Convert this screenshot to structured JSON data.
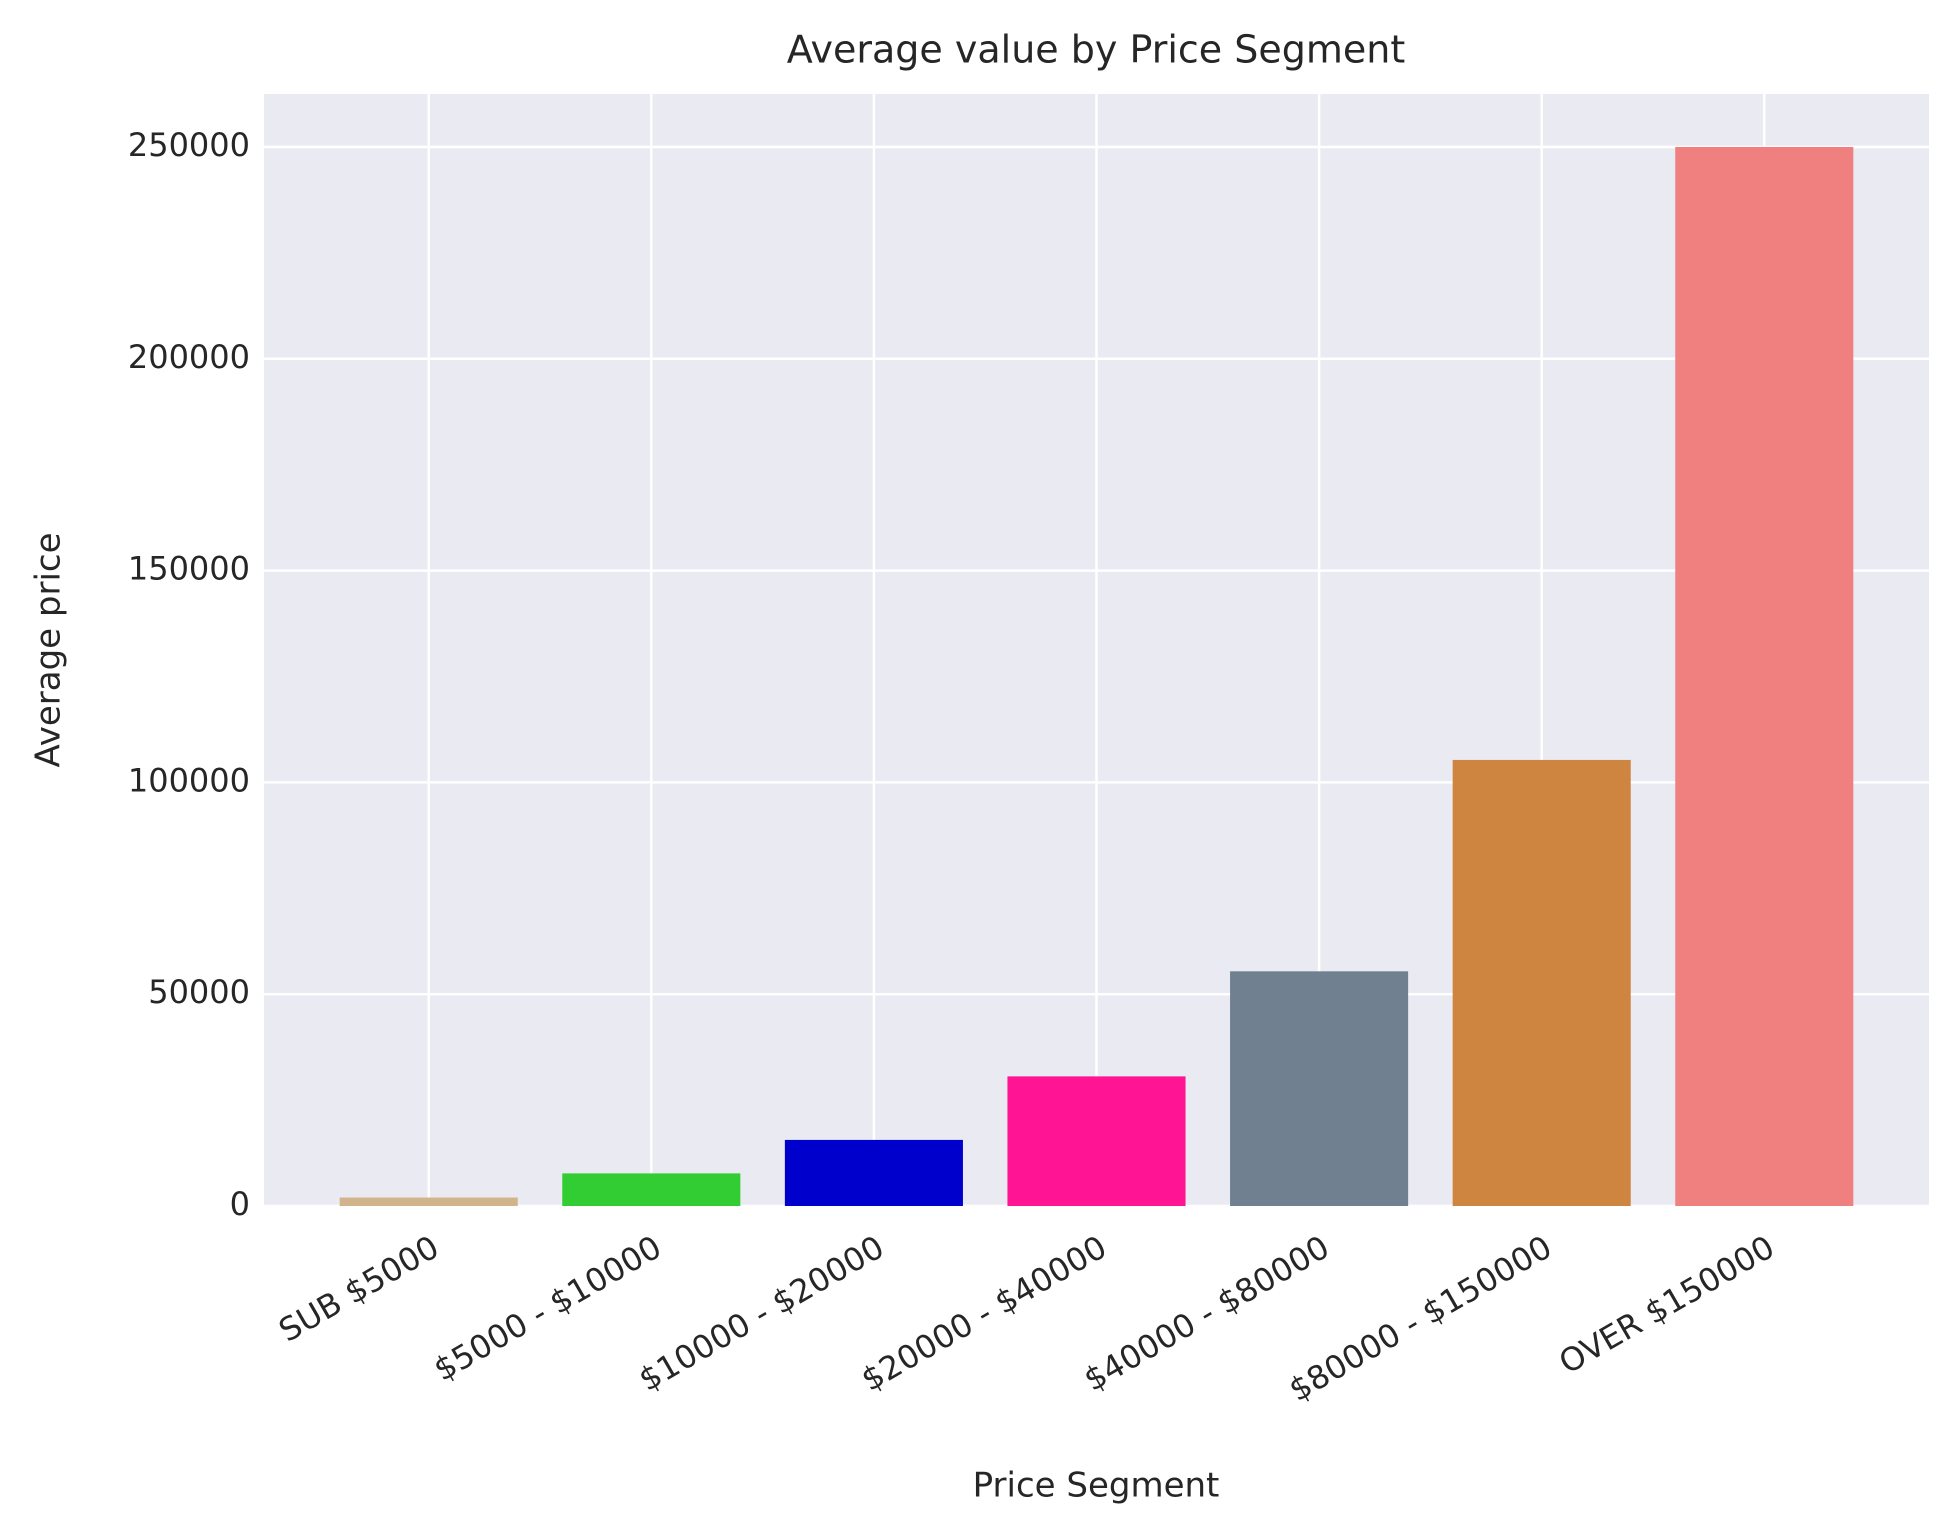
{
  "chart_data": {
    "type": "bar",
    "title": "Average value by Price Segment",
    "x_label": "Price Segment",
    "y_label": "Average price",
    "categories": [
      "SUB $5000",
      "$5000 - $10000",
      "$10000 - $20000",
      "$20000 - $40000",
      "$40000 - $80000",
      "$80000 - $150000",
      "OVER $150000"
    ],
    "values": [
      2000,
      7700,
      15600,
      30600,
      55400,
      105300,
      250000
    ],
    "colors": [
      "#d2b48c",
      "#32cd32",
      "#0000cd",
      "#ff1493",
      "#708090",
      "#cd853f",
      "#f08080"
    ],
    "ylim": [
      0,
      262500
    ],
    "yticks": [
      0,
      50000,
      100000,
      150000,
      200000,
      250000
    ],
    "grid": true
  }
}
